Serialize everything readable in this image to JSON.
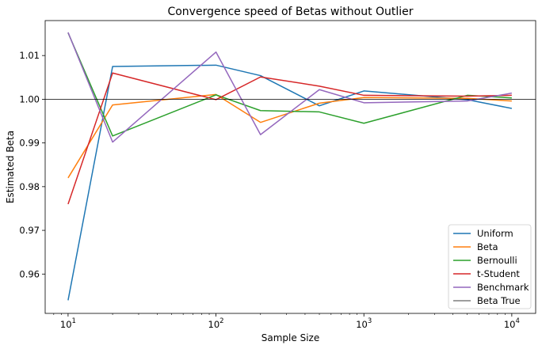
{
  "chart_data": {
    "type": "line",
    "title": "Convergence speed of Betas without Outlier",
    "xlabel": "Sample Size",
    "ylabel": "Estimated Beta",
    "xscale": "log",
    "xlim": [
      7.0,
      14500
    ],
    "ylim": [
      0.951,
      1.018
    ],
    "x_tick_values": [
      10,
      100,
      1000,
      10000
    ],
    "x_tick_labels": [
      {
        "base": "10",
        "exp": "1"
      },
      {
        "base": "10",
        "exp": "2"
      },
      {
        "base": "10",
        "exp": "3"
      },
      {
        "base": "10",
        "exp": "4"
      }
    ],
    "y_ticks": [
      0.96,
      0.97,
      0.98,
      0.99,
      1.0,
      1.01
    ],
    "y_tick_labels": [
      "0.96",
      "0.97",
      "0.98",
      "0.99",
      "1.00",
      "1.01"
    ],
    "legend_position": "lower-right",
    "x": [
      10,
      20,
      100,
      200,
      500,
      1000,
      5000,
      10000
    ],
    "series": [
      {
        "name": "Uniform",
        "color": "#1f77b4",
        "values": [
          0.954,
          1.0075,
          1.0078,
          1.0054,
          0.9985,
          1.0019,
          0.9999,
          0.9979
        ]
      },
      {
        "name": "Beta",
        "color": "#ff7f0e",
        "values": [
          0.982,
          0.9987,
          1.0011,
          0.9947,
          0.9991,
          1.0004,
          1.0002,
          0.9996
        ]
      },
      {
        "name": "Bernoulli",
        "color": "#2ca02c",
        "values": [
          1.0152,
          0.9916,
          1.001,
          0.9974,
          0.9971,
          0.9945,
          1.0009,
          1.0003
        ]
      },
      {
        "name": "t-Student",
        "color": "#d62728",
        "values": [
          0.976,
          1.006,
          0.9999,
          1.0051,
          1.003,
          1.0009,
          1.0007,
          1.0009
        ]
      },
      {
        "name": "Benchmark",
        "color": "#9467bd",
        "values": [
          1.0153,
          0.9902,
          1.0108,
          0.9919,
          1.0022,
          0.9992,
          0.9996,
          1.0014
        ]
      },
      {
        "name": "Beta True",
        "color": "#7f7f7f",
        "values": [
          1.0,
          1.0,
          1.0,
          1.0,
          1.0,
          1.0,
          1.0,
          1.0
        ],
        "reference_line": true
      }
    ]
  }
}
